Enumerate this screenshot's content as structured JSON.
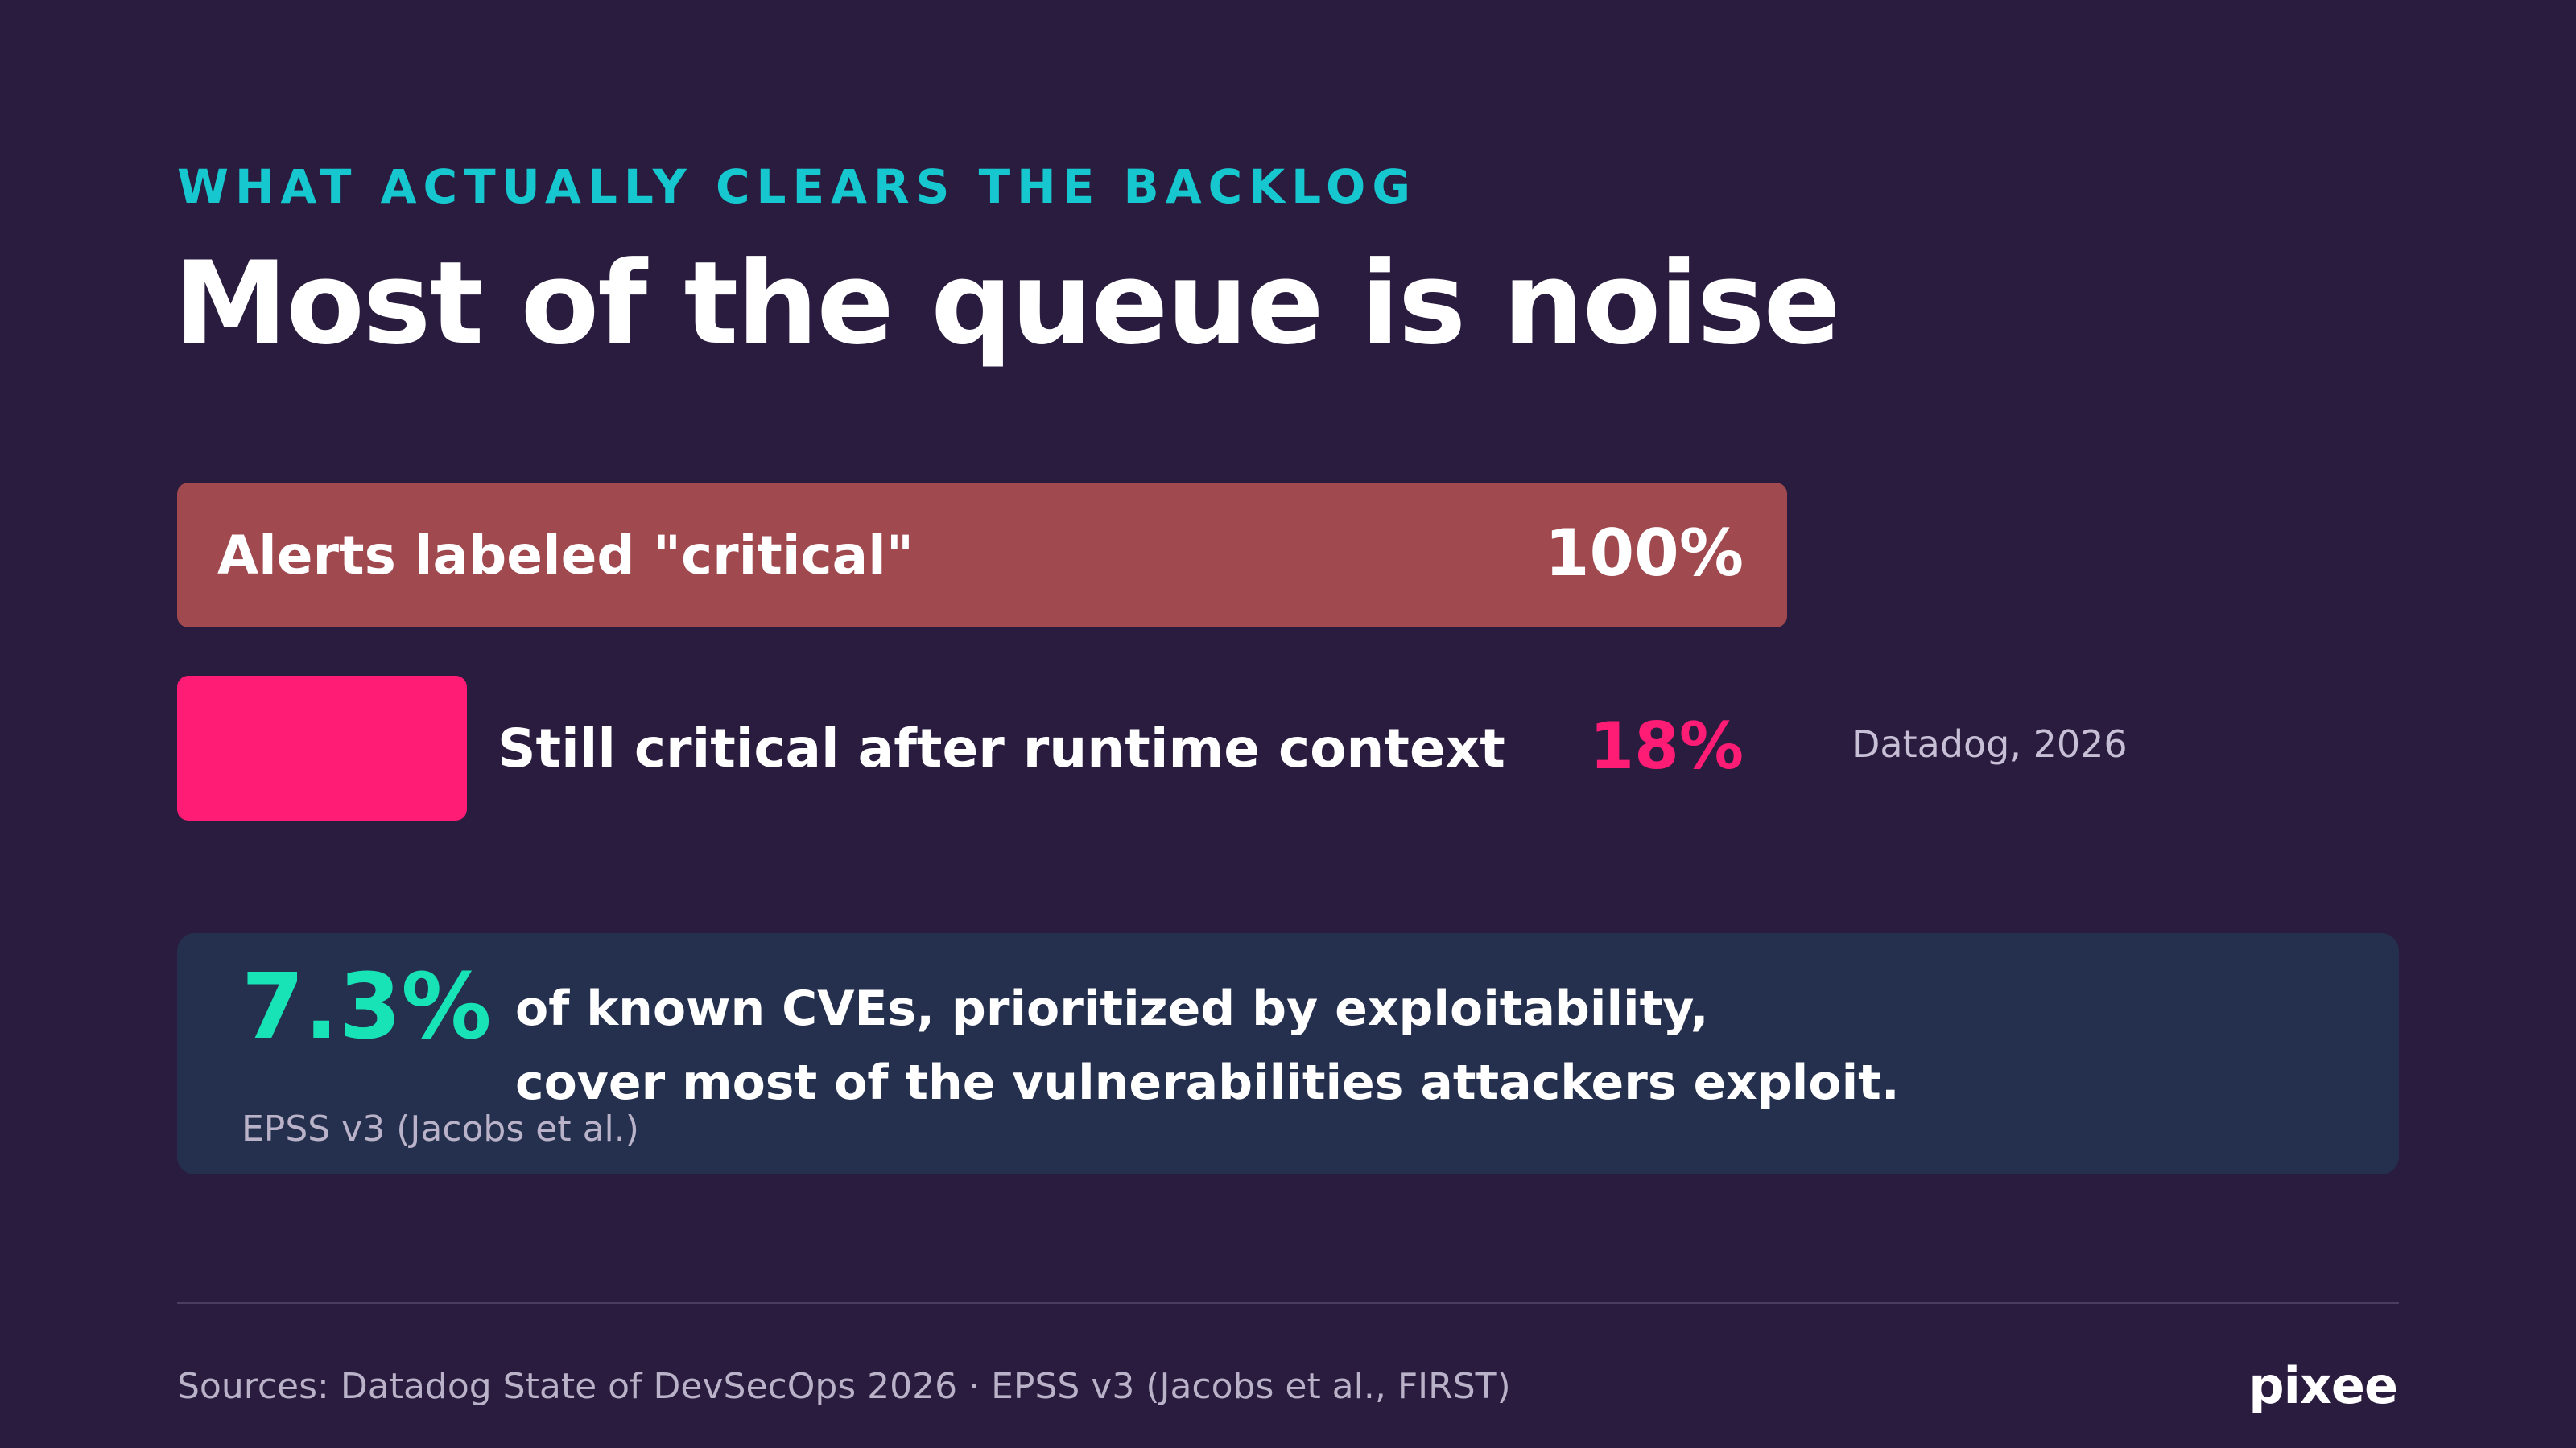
{
  "header": {
    "eyebrow": "WHAT ACTUALLY CLEARS THE BACKLOG",
    "title": "Most of the queue is noise"
  },
  "chart_data": {
    "type": "bar",
    "orientation": "horizontal",
    "categories": [
      "Alerts labeled \"critical\"",
      "Still critical after runtime context"
    ],
    "values": [
      100,
      18
    ],
    "value_labels": [
      "100%",
      "18%"
    ],
    "unit": "%",
    "xlim": [
      0,
      100
    ],
    "colors": [
      "#a04a4f",
      "#ff1c74"
    ],
    "annotation": "Datadog, 2026",
    "grid": false,
    "legend": false
  },
  "callout": {
    "value": "7.3%",
    "lines": [
      "of known CVEs, prioritized by exploitability,",
      "cover most of the vulnerabilities attackers exploit."
    ],
    "source": "EPSS v3 (Jacobs et al.)",
    "accent_color": "#17e3b6"
  },
  "footer": {
    "sources": "Sources: Datadog State of DevSecOps 2026 · EPSS v3 (Jacobs et al., FIRST)",
    "logo": "pixee"
  },
  "colors": {
    "background": "#2a1c3e",
    "eyebrow": "#17c7cf",
    "callout_bg": "#24304e"
  }
}
